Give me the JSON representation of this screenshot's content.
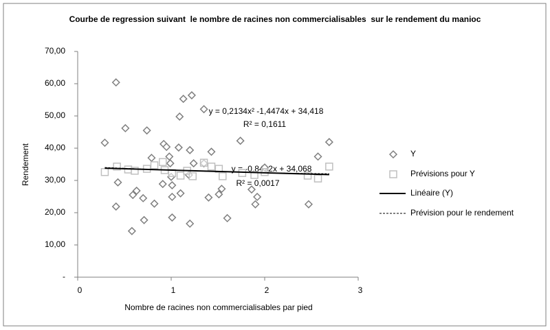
{
  "chart_data": {
    "type": "scatter",
    "title": "Courbe de regression suivant  le nombre de racines non commercialisables  sur le rendement du manioc",
    "x_label": "Nombre de racines non commercialisables par pied",
    "y_label": "Rendement",
    "xlim": [
      0,
      3
    ],
    "xticks": [
      0,
      1,
      2,
      3
    ],
    "ylim": [
      0,
      70
    ],
    "yticks": [
      {
        "value": 0,
        "label": "-"
      },
      {
        "value": 10,
        "label": "10,00"
      },
      {
        "value": 20,
        "label": "20,00"
      },
      {
        "value": 30,
        "label": "30,00"
      },
      {
        "value": 40,
        "label": "40,00"
      },
      {
        "value": 50,
        "label": "50,00"
      },
      {
        "value": 60,
        "label": "60,00"
      },
      {
        "value": 70,
        "label": "70,00"
      }
    ],
    "series": [
      {
        "name": "Y",
        "marker": "diamond",
        "color": "#7f7f7f",
        "x": [
          0.29,
          0.41,
          0.43,
          0.41,
          0.51,
          0.58,
          0.63,
          0.59,
          0.7,
          0.71,
          0.74,
          0.79,
          0.82,
          0.92,
          0.95,
          0.91,
          0.98,
          1.0,
          1.01,
          1.01,
          1.01,
          0.99,
          1.08,
          1.09,
          1.1,
          1.13,
          1.19,
          1.2,
          1.2,
          1.22,
          1.24,
          1.35,
          1.35,
          1.4,
          1.43,
          1.51,
          1.54,
          1.6,
          1.74,
          1.86,
          1.9,
          1.92,
          2.0,
          2.47,
          2.57,
          2.69
        ],
        "values": [
          41.7,
          60.4,
          29.4,
          21.9,
          46.2,
          14.3,
          26.8,
          25.5,
          24.5,
          17.7,
          45.5,
          37.0,
          22.8,
          41.3,
          40.4,
          28.9,
          37.4,
          31.1,
          28.5,
          24.9,
          18.5,
          35.3,
          40.2,
          49.8,
          26.0,
          55.3,
          31.7,
          39.4,
          16.6,
          56.4,
          35.3,
          52.1,
          35.3,
          24.7,
          38.9,
          25.7,
          27.4,
          18.3,
          42.3,
          27.2,
          22.6,
          24.9,
          34.0,
          22.6,
          37.4,
          41.9
        ]
      },
      {
        "name": "Prévisions pour Y",
        "marker": "square",
        "color": "#bfbfbf",
        "x": [
          0.29,
          0.42,
          0.54,
          0.61,
          0.74,
          0.82,
          0.91,
          0.93,
          1.01,
          1.1,
          1.17,
          1.23,
          1.35,
          1.43,
          1.51,
          1.55,
          1.76,
          1.89,
          2.0,
          2.46,
          2.57,
          2.69
        ],
        "values": [
          32.6,
          34.3,
          33.4,
          33.0,
          33.6,
          34.7,
          35.7,
          33.2,
          32.3,
          31.5,
          33.0,
          31.3,
          35.5,
          34.3,
          33.6,
          31.3,
          32.3,
          31.7,
          32.6,
          31.5,
          30.6,
          34.3
        ]
      },
      {
        "name": "Linéaire (Y)",
        "marker": "line",
        "color": "#000000",
        "x": [
          0.29,
          2.69
        ],
        "values": [
          33.8,
          31.8
        ]
      },
      {
        "name": "Prévision pour le rendement",
        "marker": "dashed",
        "color": "#000000",
        "x": [
          0.29,
          0.8,
          1.3,
          1.8,
          2.3,
          2.69
        ],
        "values": [
          34.02,
          33.4,
          32.9,
          32.5,
          32.22,
          32.07
        ]
      }
    ],
    "annotations": [
      "y = 0,2134x² -1,4474x + 34,418",
      "R² = 0,1611",
      "y = -0,8432x + 34,068",
      "R² = 0,0017"
    ]
  }
}
